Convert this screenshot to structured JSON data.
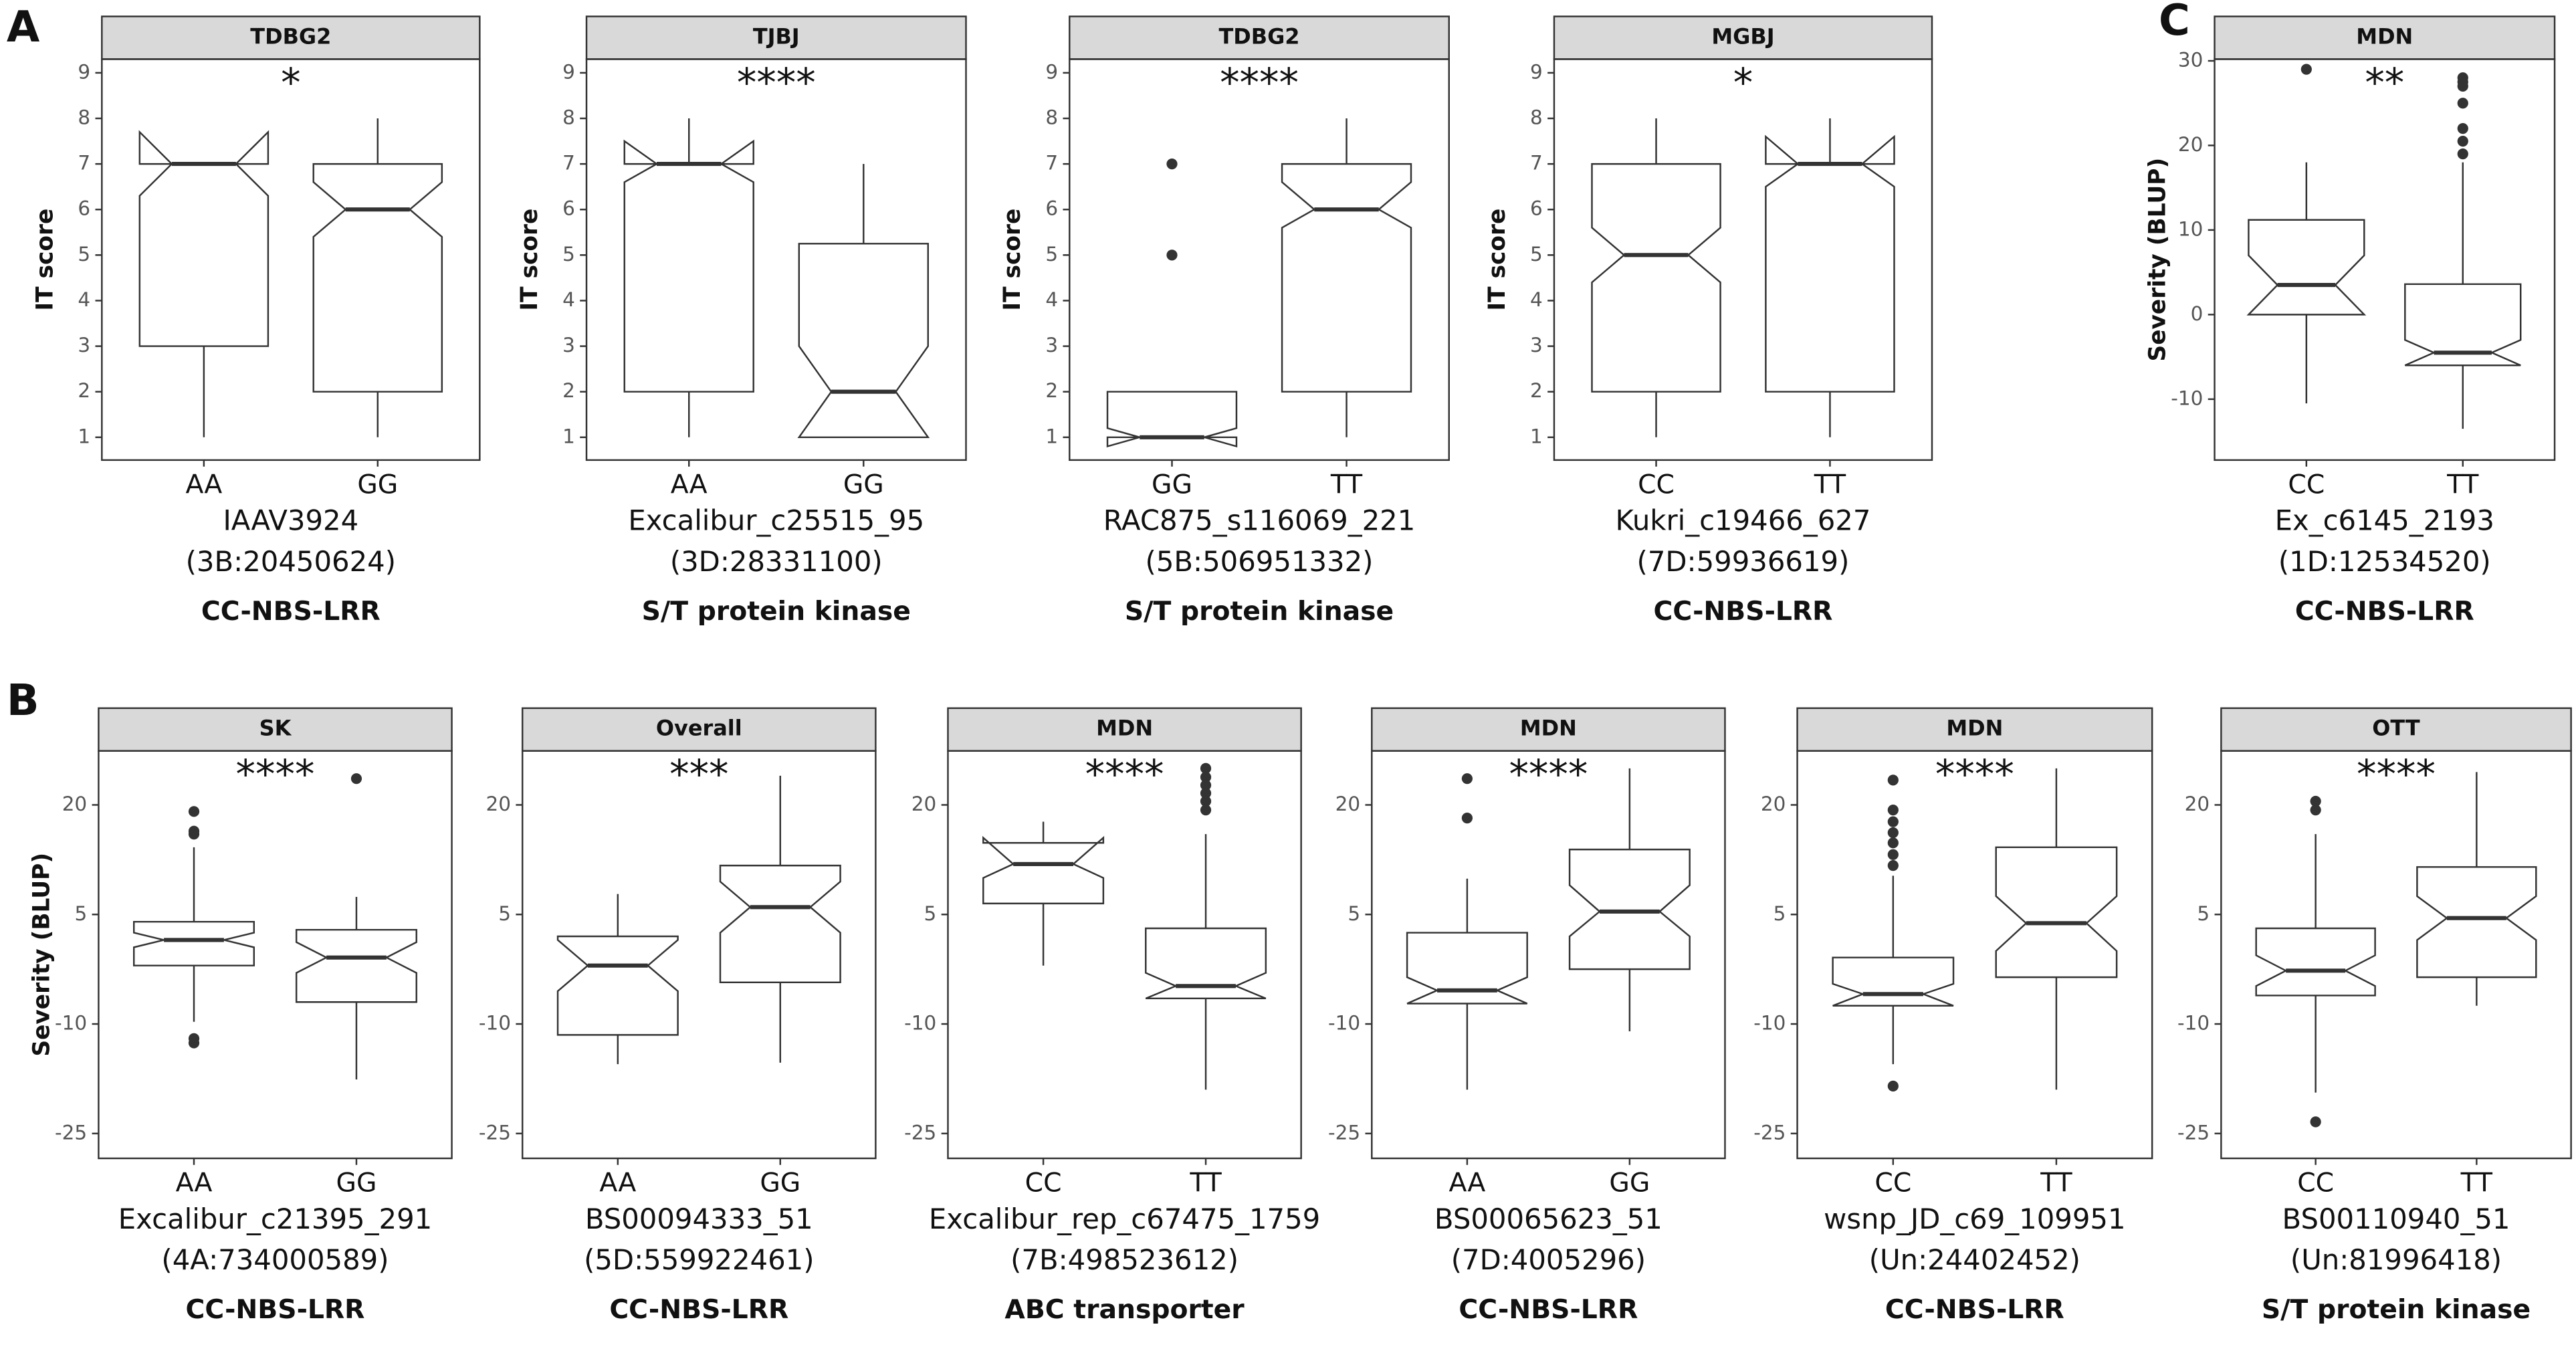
{
  "panel_labels": [
    "A",
    "B",
    "C"
  ],
  "chart_data": [
    {
      "type": "box",
      "title": "TDBG2",
      "ylabel": "IT score",
      "categories": [
        "AA",
        "GG"
      ],
      "annotation": "*",
      "ylim": [
        0.5,
        9.3
      ],
      "yticks": [
        1,
        2,
        3,
        4,
        5,
        6,
        7,
        8,
        9
      ],
      "boxes": [
        {
          "whisker_low": 1,
          "q1": 3,
          "median": 7,
          "q3": 7,
          "whisker_high": 7,
          "notch_low": 6.3,
          "notch_high": 7.7,
          "outliers": []
        },
        {
          "whisker_low": 1,
          "q1": 2,
          "median": 6,
          "q3": 7,
          "whisker_high": 8,
          "notch_low": 5.4,
          "notch_high": 6.6,
          "outliers": []
        }
      ],
      "marker": "IAAV3924",
      "position": "(3B:20450624)",
      "gene": "CC-NBS-LRR"
    },
    {
      "type": "box",
      "title": "TJBJ",
      "ylabel": "IT score",
      "categories": [
        "AA",
        "GG"
      ],
      "annotation": "****",
      "ylim": [
        0.5,
        9.3
      ],
      "yticks": [
        1,
        2,
        3,
        4,
        5,
        6,
        7,
        8,
        9
      ],
      "boxes": [
        {
          "whisker_low": 1,
          "q1": 2,
          "median": 7,
          "q3": 7,
          "whisker_high": 8,
          "notch_low": 6.6,
          "notch_high": 7.5,
          "outliers": []
        },
        {
          "whisker_low": 1,
          "q1": 1,
          "median": 2,
          "q3": 5.25,
          "whisker_high": 7,
          "notch_low": 1,
          "notch_high": 3,
          "outliers": []
        }
      ],
      "marker": "Excalibur_c25515_95",
      "position": "(3D:28331100)",
      "gene": "S/T protein kinase"
    },
    {
      "type": "box",
      "title": "TDBG2",
      "ylabel": "IT score",
      "categories": [
        "GG",
        "TT"
      ],
      "annotation": "****",
      "ylim": [
        0.5,
        9.3
      ],
      "yticks": [
        1,
        2,
        3,
        4,
        5,
        6,
        7,
        8,
        9
      ],
      "boxes": [
        {
          "whisker_low": 1,
          "q1": 1,
          "median": 1,
          "q3": 2,
          "whisker_high": 2,
          "notch_low": 0.8,
          "notch_high": 1.2,
          "outliers": [
            5,
            7
          ]
        },
        {
          "whisker_low": 1,
          "q1": 2,
          "median": 6,
          "q3": 7,
          "whisker_high": 8,
          "notch_low": 5.6,
          "notch_high": 6.6,
          "outliers": []
        }
      ],
      "marker": "RAC875_s116069_221",
      "position": "(5B:506951332)",
      "gene": "S/T protein kinase"
    },
    {
      "type": "box",
      "title": "MGBJ",
      "ylabel": "IT score",
      "categories": [
        "CC",
        "TT"
      ],
      "annotation": "*",
      "ylim": [
        0.5,
        9.3
      ],
      "yticks": [
        1,
        2,
        3,
        4,
        5,
        6,
        7,
        8,
        9
      ],
      "boxes": [
        {
          "whisker_low": 1,
          "q1": 2,
          "median": 5,
          "q3": 7,
          "whisker_high": 8,
          "notch_low": 4.4,
          "notch_high": 5.6,
          "outliers": []
        },
        {
          "whisker_low": 1,
          "q1": 2,
          "median": 7,
          "q3": 7,
          "whisker_high": 8,
          "notch_low": 6.5,
          "notch_high": 7.6,
          "outliers": []
        }
      ],
      "marker": "Kukri_c19466_627",
      "position": "(7D:59936619)",
      "gene": "CC-NBS-LRR"
    },
    {
      "type": "box",
      "title": "MDN",
      "ylabel": "Severity (BLUP)",
      "categories": [
        "CC",
        "TT"
      ],
      "annotation": "**",
      "ylim": [
        -17.2,
        30.2
      ],
      "yticks": [
        -10,
        0,
        10,
        20,
        30
      ],
      "boxes": [
        {
          "whisker_low": -10.5,
          "q1": 0,
          "median": 3.5,
          "q3": 11.2,
          "whisker_high": 18,
          "notch_low": 0,
          "notch_high": 7,
          "outliers": [
            29
          ]
        },
        {
          "whisker_low": -13.5,
          "q1": -6,
          "median": -4.5,
          "q3": 3.6,
          "whisker_high": 18,
          "notch_low": -6,
          "notch_high": -3,
          "outliers": [
            19,
            20.5,
            22,
            25,
            27,
            27.5,
            28
          ]
        }
      ],
      "marker": "Ex_c6145_2193",
      "position": "(1D:12534520)",
      "gene": "CC-NBS-LRR"
    },
    {
      "type": "box",
      "title": "SK",
      "ylabel": "Severity (BLUP)",
      "categories": [
        "AA",
        "GG"
      ],
      "annotation": "****",
      "ylim": [
        -28.4,
        27.4
      ],
      "yticks": [
        -25,
        -10,
        5,
        20
      ],
      "boxes": [
        {
          "whisker_low": -9.7,
          "q1": -2,
          "median": 1.5,
          "q3": 4,
          "whisker_high": 14.2,
          "notch_low": 0.5,
          "notch_high": 2.5,
          "outliers": [
            19.1,
            16.4,
            16,
            -12,
            -12.6
          ]
        },
        {
          "whisker_low": -17.6,
          "q1": -7,
          "median": -0.9,
          "q3": 2.9,
          "whisker_high": 7.4,
          "notch_low": -3,
          "notch_high": 1.2,
          "outliers": [
            23.6
          ]
        }
      ],
      "marker": "Excalibur_c21395_291",
      "position": "(4A:734000589)",
      "gene": "CC-NBS-LRR"
    },
    {
      "type": "box",
      "title": "Overall",
      "categories": [
        "AA",
        "GG"
      ],
      "annotation": "***",
      "ylim": [
        -28.4,
        27.4
      ],
      "yticks": [
        -25,
        -10,
        5,
        20
      ],
      "boxes": [
        {
          "whisker_low": -15.5,
          "q1": -11.5,
          "median": -2,
          "q3": 2,
          "whisker_high": 7.8,
          "notch_low": -5.5,
          "notch_high": 1.5,
          "outliers": []
        },
        {
          "whisker_low": -15.3,
          "q1": -4.3,
          "median": 6,
          "q3": 11.7,
          "whisker_high": 24,
          "notch_low": 2.5,
          "notch_high": 9.5,
          "outliers": []
        }
      ],
      "marker": "BS00094333_51",
      "position": "(5D:559922461)",
      "gene": "CC-NBS-LRR"
    },
    {
      "type": "box",
      "title": "MDN",
      "categories": [
        "CC",
        "TT"
      ],
      "annotation": "****",
      "ylim": [
        -28.4,
        27.4
      ],
      "yticks": [
        -25,
        -10,
        5,
        20
      ],
      "boxes": [
        {
          "whisker_low": -2,
          "q1": 6.5,
          "median": 11.9,
          "q3": 14.8,
          "whisker_high": 17.7,
          "notch_low": 10,
          "notch_high": 15.5,
          "outliers": []
        },
        {
          "whisker_low": -19,
          "q1": -6.5,
          "median": -4.8,
          "q3": 3.1,
          "whisker_high": 16,
          "notch_low": -6.5,
          "notch_high": -3,
          "outliers": [
            25,
            23.8,
            22.7,
            21.6,
            20.5,
            19.3
          ]
        }
      ],
      "marker": "Excalibur_rep_c67475_1759",
      "position": "(7B:498523612)",
      "gene": "ABC transporter"
    },
    {
      "type": "box",
      "title": "MDN",
      "categories": [
        "AA",
        "GG"
      ],
      "annotation": "****",
      "ylim": [
        -28.4,
        27.4
      ],
      "yticks": [
        -25,
        -10,
        5,
        20
      ],
      "boxes": [
        {
          "whisker_low": -19,
          "q1": -7.2,
          "median": -5.4,
          "q3": 2.5,
          "whisker_high": 9.9,
          "notch_low": -7.2,
          "notch_high": -3.6,
          "outliers": [
            23.6,
            18.2
          ]
        },
        {
          "whisker_low": -11,
          "q1": -2.5,
          "median": 5.4,
          "q3": 13.9,
          "whisker_high": 25,
          "notch_low": 2,
          "notch_high": 9,
          "outliers": []
        }
      ],
      "marker": "BS00065623_51",
      "position": "(7D:4005296)",
      "gene": "CC-NBS-LRR"
    },
    {
      "type": "box",
      "title": "MDN",
      "categories": [
        "CC",
        "TT"
      ],
      "annotation": "****",
      "ylim": [
        -28.4,
        27.4
      ],
      "yticks": [
        -25,
        -10,
        5,
        20
      ],
      "boxes": [
        {
          "whisker_low": -15.5,
          "q1": -7.5,
          "median": -5.9,
          "q3": -0.9,
          "whisker_high": 10.3,
          "notch_low": -7.5,
          "notch_high": -4.5,
          "outliers": [
            -18.5,
            23.4,
            19.3,
            17.7,
            16.2,
            14.8,
            13.2,
            11.7
          ]
        },
        {
          "whisker_low": -19,
          "q1": -3.6,
          "median": 3.8,
          "q3": 14.2,
          "whisker_high": 25,
          "notch_low": 0,
          "notch_high": 7.5,
          "outliers": []
        }
      ],
      "marker": "wsnp_JD_c69_109951",
      "position": "(Un:24402452)",
      "gene": "CC-NBS-LRR"
    },
    {
      "type": "box",
      "title": "OTT",
      "categories": [
        "CC",
        "TT"
      ],
      "annotation": "****",
      "ylim": [
        -28.4,
        27.4
      ],
      "yticks": [
        -25,
        -10,
        5,
        20
      ],
      "boxes": [
        {
          "whisker_low": -19.4,
          "q1": -6.1,
          "median": -2.7,
          "q3": 3.1,
          "whisker_high": 16,
          "notch_low": -4.8,
          "notch_high": -0.6,
          "outliers": [
            20.5,
            19.3,
            -23.4
          ]
        },
        {
          "whisker_low": -7.5,
          "q1": -3.6,
          "median": 4.5,
          "q3": 11.5,
          "whisker_high": 24.5,
          "notch_low": 1.5,
          "notch_high": 7.5,
          "outliers": []
        }
      ],
      "marker": "BS00110940_51",
      "position": "(Un:81996418)",
      "gene": "S/T protein kinase"
    }
  ]
}
